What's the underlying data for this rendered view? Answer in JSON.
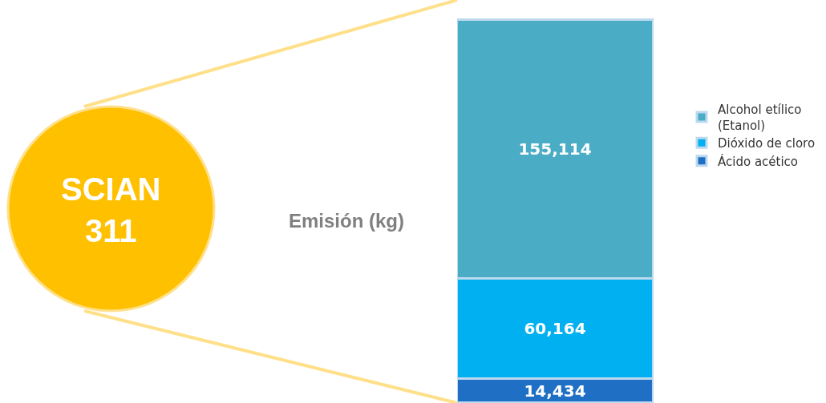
{
  "chart_data": {
    "type": "bar",
    "stacked": true,
    "categories": [
      null
    ],
    "ylabel": "Emisión (kg)",
    "annotations": [
      "SCIAN\n311"
    ],
    "series": [
      {
        "name": "Ácido acético",
        "color": "#1f6fc5",
        "values": [
          14434
        ],
        "value_labels": [
          "14,434"
        ]
      },
      {
        "name": "Dióxido de cloro",
        "color": "#00b0f0",
        "values": [
          60164
        ],
        "value_labels": [
          "60,164"
        ]
      },
      {
        "name": "Alcohol etílico (Etanol)",
        "color": "#4bacc6",
        "values": [
          155114
        ],
        "value_labels": [
          "155,114"
        ]
      }
    ],
    "legend": "right",
    "tick_labels": false
  }
}
